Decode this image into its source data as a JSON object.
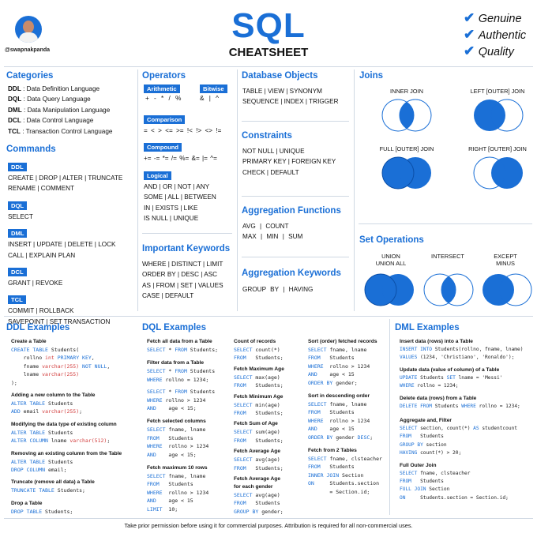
{
  "header": {
    "title": "SQL",
    "subtitle": "CHEATSHEET",
    "handle": "@swapnakpanda",
    "badges": [
      "Genuine",
      "Authentic",
      "Quality"
    ]
  },
  "categories": {
    "title": "Categories",
    "items": [
      {
        "abbr": "DDL",
        "text": ": Data Definition Language"
      },
      {
        "abbr": "DQL",
        "text": ": Data Query Language"
      },
      {
        "abbr": "DML",
        "text": ": Data Manipulation Language"
      },
      {
        "abbr": "DCL",
        "text": ": Data Control Language"
      },
      {
        "abbr": "TCL",
        "text": ": Transaction Control Language"
      }
    ]
  },
  "commands": {
    "title": "Commands",
    "groups": [
      {
        "tag": "DDL",
        "lines": [
          "CREATE | DROP | ALTER | TRUNCATE",
          "RENAME | COMMENT"
        ]
      },
      {
        "tag": "DQL",
        "lines": [
          "SELECT"
        ]
      },
      {
        "tag": "DML",
        "lines": [
          "INSERT | UPDATE | DELETE | LOCK",
          "CALL | EXPLAIN PLAN"
        ]
      },
      {
        "tag": "DCL",
        "lines": [
          "GRANT | REVOKE"
        ]
      },
      {
        "tag": "TCL",
        "lines": [
          "COMMIT | ROLLBACK",
          "SAVEPOINT | SET TRANSACTION"
        ]
      }
    ]
  },
  "operators": {
    "title": "Operators",
    "arith_tag": "Arithmetic",
    "arith": "+ - * / %",
    "bit_tag": "Bitwise",
    "bit": "& | ^",
    "comp_tag": "Comparison",
    "comp": "= < > <= >= !< !> <> !=",
    "compound_tag": "Compound",
    "compound": "+= -= *= /= %= &= |= ^=",
    "logical_tag": "Logical",
    "logical": [
      "AND | OR | NOT | ANY",
      "SOME | ALL | BETWEEN",
      "IN | EXISTS | LIKE",
      "IS NULL | UNIQUE"
    ]
  },
  "keywords": {
    "title": "Important Keywords",
    "lines": [
      "WHERE | DISTINCT | LIMIT",
      "ORDER BY | DESC | ASC",
      "AS | FROM | SET | VALUES",
      "CASE | DEFAULT"
    ]
  },
  "dbobjects": {
    "title": "Database Objects",
    "lines": [
      "TABLE | VIEW | SYNONYM",
      "SEQUENCE | INDEX | TRIGGER"
    ]
  },
  "constraints": {
    "title": "Constraints",
    "lines": [
      "NOT NULL | UNIQUE",
      "PRIMARY KEY | FOREIGN KEY",
      "CHECK | DEFAULT"
    ]
  },
  "aggfuncs": {
    "title": "Aggregation Functions",
    "lines": [
      "AVG | COUNT",
      "MAX | MIN | SUM"
    ]
  },
  "aggkeys": {
    "title": "Aggregation Keywords",
    "lines": [
      "GROUP BY | HAVING"
    ]
  },
  "joins": {
    "title": "Joins",
    "items": [
      "INNER JOIN",
      "LEFT [OUTER] JOIN",
      "FULL [OUTER] JOIN",
      "RIGHT [OUTER] JOIN"
    ]
  },
  "setops": {
    "title": "Set Operations",
    "items": [
      "UNION\nUNION ALL",
      "INTERSECT",
      "EXCEPT\nMINUS"
    ]
  },
  "ddl_ex": {
    "title": "DDL Examples",
    "blocks": [
      {
        "t": "Create a Table",
        "c": "CREATE TABLE Students(\n    rollno int PRIMARY KEY,\n    fname varchar(255) NOT NULL,\n    lname varchar(255)\n);"
      },
      {
        "t": "Adding a new column to the Table",
        "c": "ALTER TABLE Students\nADD email varchar(255);"
      },
      {
        "t": "Modifying the data type of existing column",
        "c": "ALTER TABLE Students\nALTER COLUMN lname varchar(512);"
      },
      {
        "t": "Removing an existing column from the Table",
        "c": "ALTER TABLE Students\nDROP COLUMN email;"
      },
      {
        "t": "Truncate (remove all data) a Table",
        "c": "TRUNCATE TABLE Students;"
      },
      {
        "t": "Drop a Table",
        "c": "DROP TABLE Students;"
      }
    ]
  },
  "dql_ex": {
    "title": "DQL Examples",
    "col1": [
      {
        "t": "Fetch all data from a Table",
        "c": "SELECT * FROM Students;"
      },
      {
        "t": "Filter data from a Table",
        "c": "SELECT * FROM Students\nWHERE rollno = 1234;"
      },
      {
        "t": "",
        "c": "SELECT * FROM Students\nWHERE rollno > 1234\nAND    age < 15;"
      },
      {
        "t": "Fetch selected columns",
        "c": "SELECT fname, lname\nFROM   Students\nWHERE  rollno > 1234\nAND    age < 15;"
      },
      {
        "t": "Fetch maximum 10 rows",
        "c": "SELECT fname, lname\nFROM   Students\nWHERE  rollno > 1234\nAND    age < 15\nLIMIT  10;"
      }
    ],
    "col2": [
      {
        "t": "Count of records",
        "c": "SELECT count(*)\nFROM   Students;"
      },
      {
        "t": "Fetch Maximum Age",
        "c": "SELECT max(age)\nFROM   Students;"
      },
      {
        "t": "Fetch Minimum Age",
        "c": "SELECT min(age)\nFROM   Students;"
      },
      {
        "t": "Fetch Sum of Age",
        "c": "SELECT sum(age)\nFROM   Students;"
      },
      {
        "t": "Fetch Average Age",
        "c": "SELECT avg(age)\nFROM   Students;"
      },
      {
        "t": "Fetch Average Age\nfor each gender",
        "c": "SELECT avg(age)\nFROM   Students\nGROUP BY gender;"
      }
    ],
    "col3": [
      {
        "t": "Sort (order) fetched records",
        "c": "SELECT fname, lname\nFROM   Students\nWHERE  rollno > 1234\nAND    age < 15\nORDER BY gender;"
      },
      {
        "t": "Sort in descending order",
        "c": "SELECT fname, lname\nFROM   Students\nWHERE  rollno > 1234\nAND    age < 15\nORDER BY gender DESC;"
      },
      {
        "t": "Fetch from 2 Tables",
        "c": "SELECT fname, clsteacher\nFROM   Students\nINNER JOIN Section\nON     Students.section\n       = Section.id;"
      }
    ]
  },
  "dml_ex": {
    "title": "DML Examples",
    "blocks": [
      {
        "t": "Insert data (rows) into a Table",
        "c": "INSERT INTO Students(rollno, fname, lname)\nVALUES (1234, 'Christiano', 'Ronaldo');"
      },
      {
        "t": "Update data (value of column) of a Table",
        "c": "UPDATE Students SET lname = 'Messi'\nWHERE rollno = 1234;"
      },
      {
        "t": "Delete data (rows) from a Table",
        "c": "DELETE FROM Students WHERE rollno = 1234;"
      },
      {
        "t": "Aggregate and, Filter",
        "c": "SELECT section, count(*) AS studentcount\nFROM   Students\nGROUP BY section\nHAVING count(*) > 20;"
      },
      {
        "t": "Full Outer Join",
        "c": "SELECT fname, clsteacher\nFROM   Students\nFULL JOIN Section\nON     Students.section = Section.id;"
      }
    ]
  },
  "footer": "Take prior permission before using it for commercial purposes. Attribution is required for all non-commercial uses.",
  "colors": {
    "accent": "#1a6fd6",
    "separator": "#cfd8e3"
  }
}
